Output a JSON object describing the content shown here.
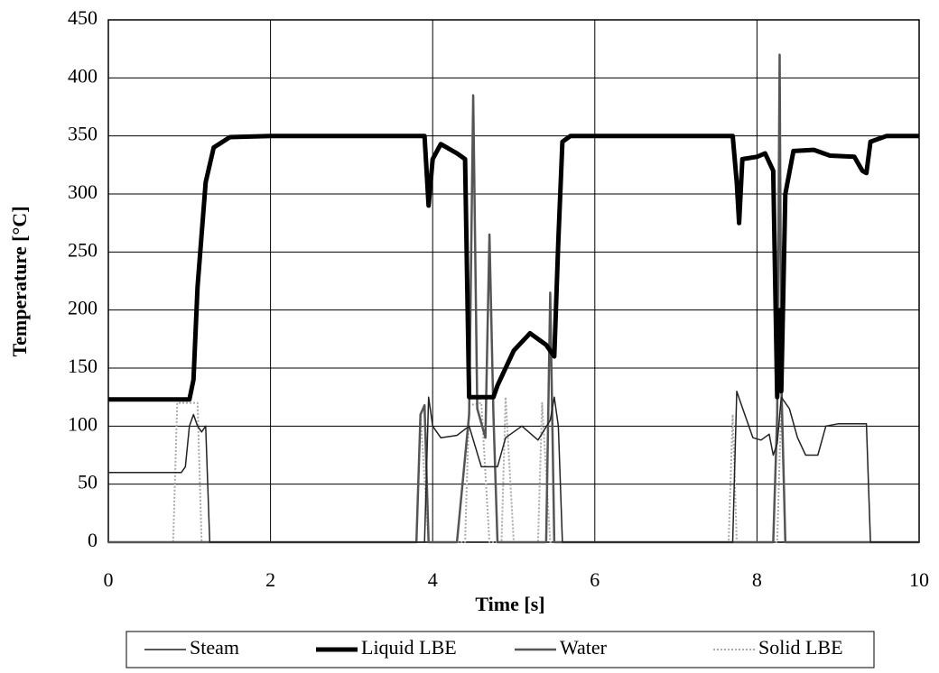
{
  "chart_data": {
    "type": "line",
    "xlabel": "Time [s]",
    "ylabel": "Temperature [°C]",
    "xlim": [
      0,
      10
    ],
    "xticks": [
      0,
      2,
      4,
      6,
      8,
      10
    ],
    "ylim": [
      0,
      450
    ],
    "yticks": [
      0,
      50,
      100,
      150,
      200,
      250,
      300,
      350,
      400,
      450
    ],
    "grid": true,
    "legend": "bottom",
    "series": [
      {
        "name": "Steam",
        "color": "#222222",
        "width": 1.5,
        "x": [
          0,
          0.9,
          0.95,
          1.0,
          1.05,
          1.1,
          1.15,
          1.2,
          1.25,
          3.9,
          3.95,
          4.0,
          4.1,
          4.3,
          4.45,
          4.6,
          4.8,
          4.9,
          5.1,
          5.3,
          5.45,
          5.5,
          5.55,
          5.6,
          7.7,
          7.75,
          7.8,
          7.95,
          8.05,
          8.15,
          8.2,
          8.25,
          8.3,
          8.4,
          8.5,
          8.6,
          8.75,
          8.85,
          9.0,
          9.35,
          9.4,
          10
        ],
        "values": [
          60,
          60,
          65,
          100,
          110,
          100,
          95,
          100,
          0,
          0,
          125,
          100,
          90,
          92,
          100,
          65,
          65,
          90,
          100,
          88,
          105,
          125,
          100,
          0,
          0,
          130,
          120,
          90,
          88,
          93,
          75,
          85,
          125,
          115,
          90,
          75,
          75,
          100,
          102,
          102,
          0,
          0
        ]
      },
      {
        "name": "Liquid LBE",
        "color": "#000000",
        "width": 5,
        "x": [
          0,
          1.0,
          1.05,
          1.1,
          1.2,
          1.3,
          1.5,
          2,
          3.9,
          3.95,
          4.0,
          4.1,
          4.3,
          4.4,
          4.45,
          4.75,
          4.8,
          5.0,
          5.2,
          5.4,
          5.5,
          5.55,
          5.6,
          5.7,
          6,
          7.7,
          7.75,
          7.78,
          7.82,
          8.0,
          8.1,
          8.2,
          8.25,
          8.28,
          8.3,
          8.35,
          8.45,
          8.7,
          8.9,
          9.2,
          9.3,
          9.35,
          9.4,
          9.6,
          10
        ],
        "values": [
          123,
          123,
          140,
          220,
          310,
          340,
          349,
          350,
          350,
          290,
          330,
          343,
          335,
          330,
          125,
          125,
          135,
          165,
          180,
          170,
          160,
          260,
          345,
          350,
          350,
          350,
          310,
          275,
          330,
          332,
          335,
          320,
          125,
          200,
          130,
          300,
          337,
          338,
          333,
          332,
          320,
          318,
          345,
          350,
          350
        ]
      },
      {
        "name": "Water",
        "color": "#555555",
        "width": 2.5,
        "x": [
          0,
          3.8,
          3.85,
          3.9,
          3.95,
          4.3,
          4.45,
          4.5,
          4.55,
          4.65,
          4.7,
          4.75,
          4.8,
          5.4,
          5.45,
          5.5,
          8.2,
          8.25,
          8.28,
          8.3,
          8.35,
          10
        ],
        "values": [
          0,
          0,
          110,
          118,
          0,
          0,
          110,
          385,
          115,
          90,
          265,
          110,
          0,
          0,
          215,
          0,
          0,
          110,
          420,
          140,
          0,
          0
        ]
      },
      {
        "name": "Solid LBE",
        "color": "#aaaaaa",
        "width": 2,
        "dash": "2,2",
        "x": [
          0,
          0.8,
          0.85,
          1.1,
          1.15,
          3.8,
          3.85,
          3.95,
          4.4,
          4.45,
          4.6,
          4.7,
          4.85,
          4.9,
          5.0,
          5.3,
          5.35,
          5.45,
          7.65,
          7.7,
          7.75,
          8.25,
          8.3,
          8.35,
          10
        ],
        "values": [
          0,
          0,
          120,
          120,
          0,
          0,
          110,
          0,
          0,
          118,
          120,
          0,
          0,
          125,
          0,
          0,
          120,
          0,
          0,
          110,
          0,
          0,
          120,
          0,
          0
        ]
      }
    ]
  }
}
